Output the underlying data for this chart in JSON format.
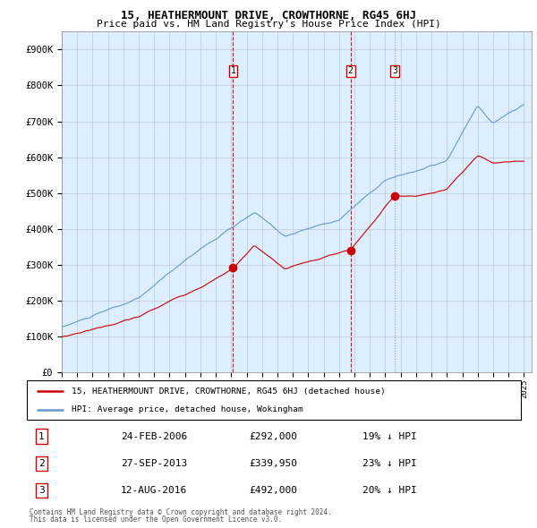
{
  "title": "15, HEATHERMOUNT DRIVE, CROWTHORNE, RG45 6HJ",
  "subtitle": "Price paid vs. HM Land Registry's House Price Index (HPI)",
  "legend_line1": "15, HEATHERMOUNT DRIVE, CROWTHORNE, RG45 6HJ (detached house)",
  "legend_line2": "HPI: Average price, detached house, Wokingham",
  "footnote1": "Contains HM Land Registry data © Crown copyright and database right 2024.",
  "footnote2": "This data is licensed under the Open Government Licence v3.0.",
  "sale_prices": [
    292000,
    339950,
    492000
  ],
  "sale_labels": [
    "1",
    "2",
    "3"
  ],
  "sale_table": [
    [
      "1",
      "24-FEB-2006",
      "£292,000",
      "19% ↓ HPI"
    ],
    [
      "2",
      "27-SEP-2013",
      "£339,950",
      "23% ↓ HPI"
    ],
    [
      "3",
      "12-AUG-2016",
      "£492,000",
      "20% ↓ HPI"
    ]
  ],
  "red_color": "#cc0000",
  "blue_color": "#6699cc",
  "bg_color": "#ddeeff",
  "grid_color": "#c0c8d8",
  "vline_colors": [
    "#cc0000",
    "#cc0000",
    "#999999"
  ],
  "vline_styles": [
    "--",
    "--",
    ":"
  ],
  "ylim": [
    0,
    950000
  ],
  "yticks": [
    0,
    100000,
    200000,
    300000,
    400000,
    500000,
    600000,
    700000,
    800000,
    900000
  ],
  "ytick_labels": [
    "£0",
    "£100K",
    "£200K",
    "£300K",
    "£400K",
    "£500K",
    "£600K",
    "£700K",
    "£800K",
    "£900K"
  ],
  "year_start": 1995,
  "year_end": 2025,
  "sale_year_floats": [
    2006.12,
    2013.75,
    2016.62
  ]
}
